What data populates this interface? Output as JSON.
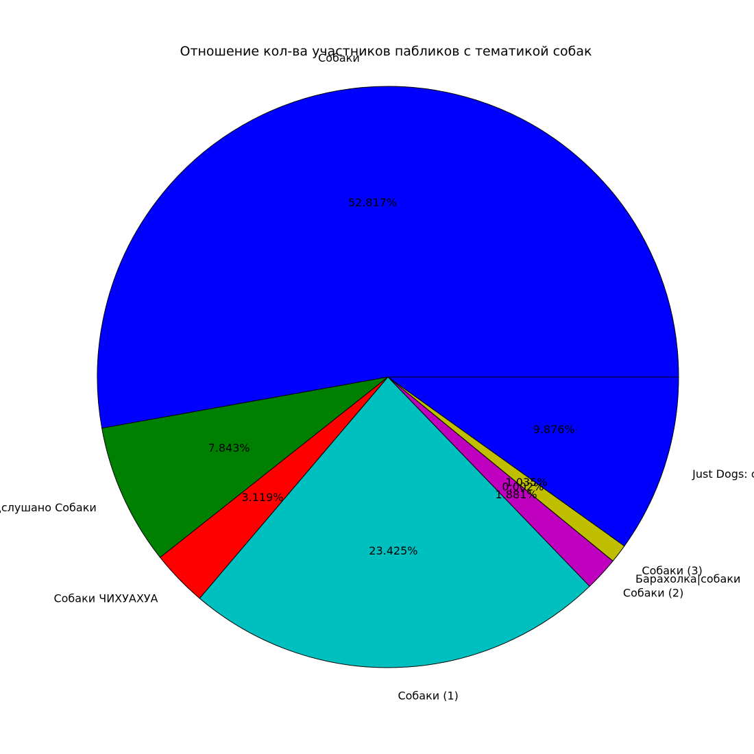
{
  "chart_data": {
    "type": "pie",
    "title": "Отношение кол-ва участников пабликов с тематикой собак",
    "start_angle_deg": 0,
    "direction": "counterclockwise",
    "slices": [
      {
        "label": "Собаки",
        "value": 52.817,
        "pct_label": "52.817%",
        "color": "#0000ff"
      },
      {
        "label": "Подслушано Собаки",
        "value": 7.843,
        "pct_label": "7.843%",
        "color": "#008000"
      },
      {
        "label": "Собаки ЧИХУАХУА",
        "value": 3.119,
        "pct_label": "3.119%",
        "color": "#ff0000"
      },
      {
        "label": "Собаки (1)",
        "value": 23.425,
        "pct_label": "23.425%",
        "color": "#00bfbf"
      },
      {
        "label": "Собаки (2)",
        "value": 1.881,
        "pct_label": "1.881%",
        "color": "#bf00bf"
      },
      {
        "label": "Барахолка|собаки",
        "value": 0.002,
        "pct_label": "0.002%",
        "color": "#bfbf00"
      },
      {
        "label": "Собаки (3)",
        "value": 1.035,
        "pct_label": "1.035%",
        "color": "#bfbf00"
      },
      {
        "label": "Just Dogs: собаки",
        "value": 9.876,
        "pct_label": "9.876%",
        "color": "#0000ff"
      }
    ]
  }
}
